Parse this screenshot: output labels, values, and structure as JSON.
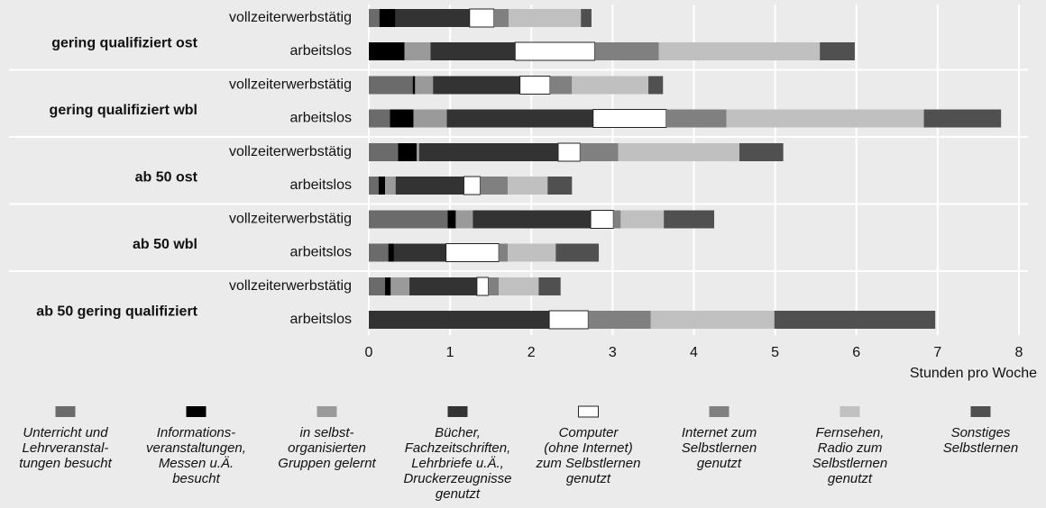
{
  "chart_data": {
    "type": "stacked-barh",
    "groups": [
      "gering qualifiziert ost",
      "gering qualifiziert wbl",
      "ab 50 ost",
      "ab 50 wbl",
      "ab 50 gering qualifiziert"
    ],
    "categories": [
      "vollzeiterwerbstätig",
      "arbeitslos",
      "vollzeiterwerbstätig",
      "arbeitslos",
      "vollzeiterwerbstätig",
      "arbeitslos",
      "vollzeiterwerbstätig",
      "arbeitslos",
      "vollzeiterwerbstätig",
      "arbeitslos"
    ],
    "xlabel": "Stunden pro Woche",
    "xlim": [
      0,
      8
    ],
    "xticks": [
      0,
      1,
      2,
      3,
      4,
      5,
      6,
      7,
      8
    ],
    "grid": true,
    "series": [
      {
        "name": "Unterricht und\nLehrveranstal-\ntungen besucht",
        "color": "#6b6b6b",
        "values": [
          0.13,
          0,
          0.54,
          0.26,
          0.36,
          0.12,
          0.97,
          0.24,
          0.2,
          0
        ]
      },
      {
        "name": "Informations-\nveranstaltungen,\nMessen u.Ä.\nbesucht",
        "color": "#000000",
        "values": [
          0.2,
          0.44,
          0.03,
          0.29,
          0.23,
          0.08,
          0.1,
          0.07,
          0.07,
          0
        ]
      },
      {
        "name": "in selbst-\norganisierten\nGruppen gelernt",
        "color": "#9a9a9a",
        "values": [
          0,
          0.32,
          0.22,
          0.41,
          0.03,
          0.13,
          0.21,
          0,
          0.23,
          0
        ]
      },
      {
        "name": "Bücher,\nFachzeitschriften,\nLehrbriefe u.Ä.,\nDruckerzeugnisse\ngenutzt",
        "color": "#333333",
        "values": [
          0.91,
          1.04,
          1.07,
          1.8,
          1.71,
          0.84,
          1.45,
          0.64,
          0.83,
          2.22
        ]
      },
      {
        "name": "Computer\n(ohne Internet)\nzum Selbstlernen\ngenutzt",
        "color": "#ffffff",
        "values": [
          0.3,
          0.98,
          0.37,
          0.9,
          0.27,
          0.2,
          0.28,
          0.65,
          0.14,
          0.48
        ]
      },
      {
        "name": "Internet zum\nSelbstlernen\ngenutzt",
        "color": "#808080",
        "values": [
          0.18,
          0.79,
          0.27,
          0.74,
          0.47,
          0.34,
          0.09,
          0.11,
          0.13,
          0.77
        ]
      },
      {
        "name": "Fernsehen,\nRadio zum\nSelbstlernen\ngenutzt",
        "color": "#c0c0c0",
        "values": [
          0.89,
          1.98,
          0.94,
          2.43,
          1.49,
          0.49,
          0.53,
          0.59,
          0.49,
          1.52
        ]
      },
      {
        "name": "Sonstiges\nSelbstlernen",
        "color": "#505050",
        "values": [
          0.13,
          0.43,
          0.18,
          0.95,
          0.54,
          0.3,
          0.62,
          0.53,
          0.27,
          1.98
        ]
      }
    ]
  }
}
